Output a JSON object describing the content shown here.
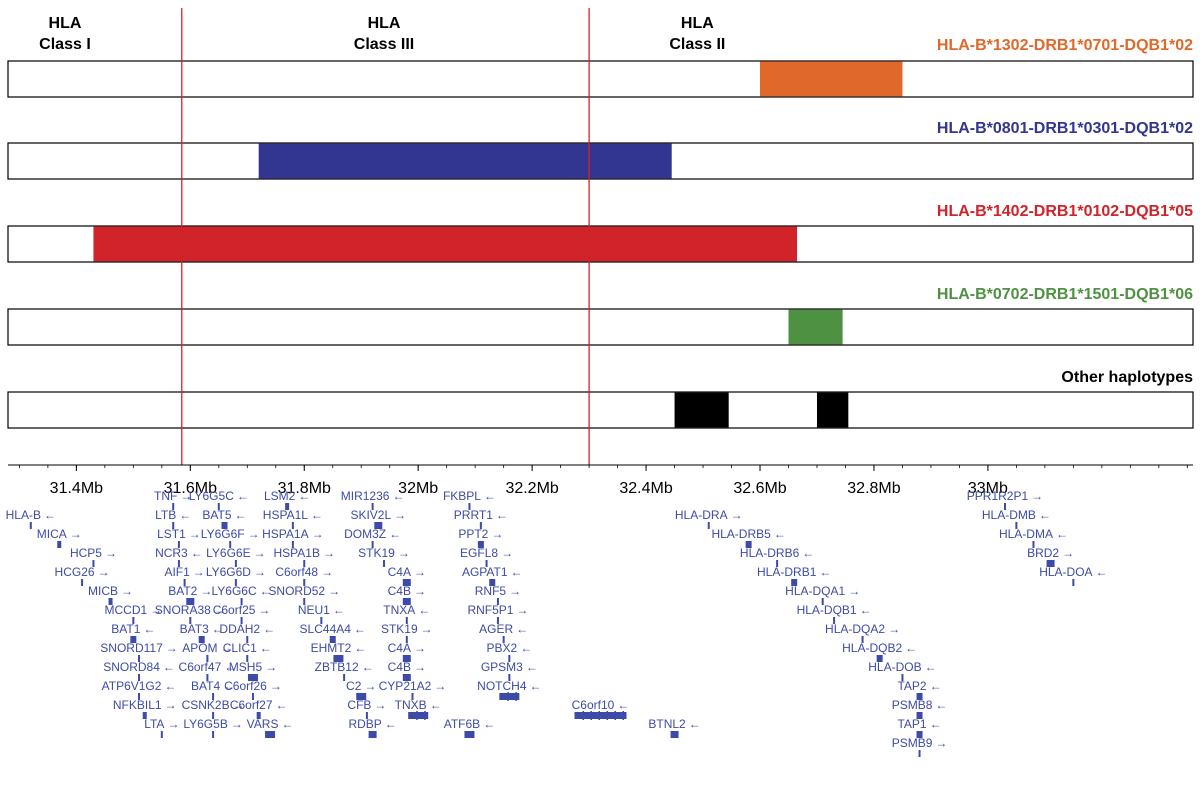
{
  "regions": [
    {
      "name": "HLA",
      "sub": "Class I",
      "center_mb": 31.38
    },
    {
      "name": "HLA",
      "sub": "Class III",
      "center_mb": 31.94
    },
    {
      "name": "HLA",
      "sub": "Class II",
      "center_mb": 32.49
    }
  ],
  "boundaries_mb": [
    31.585,
    32.3
  ],
  "axis": {
    "range_mb": [
      31.28,
      33.36
    ],
    "ticks": [
      {
        "value": 31.4,
        "label": "31.4Mb"
      },
      {
        "value": 31.6,
        "label": "31.6Mb"
      },
      {
        "value": 31.8,
        "label": "31.8Mb"
      },
      {
        "value": 32.0,
        "label": "32Mb"
      },
      {
        "value": 32.2,
        "label": "32.2Mb"
      },
      {
        "value": 32.4,
        "label": "32.4Mb"
      },
      {
        "value": 32.6,
        "label": "32.6Mb"
      },
      {
        "value": 32.8,
        "label": "32.8Mb"
      },
      {
        "value": 33.0,
        "label": "33Mb"
      }
    ]
  },
  "haplotypes": [
    {
      "label": "HLA-B*1302-DRB1*0701-DQB1*02",
      "color": "#e0682a",
      "segments": [
        [
          32.6,
          32.85
        ]
      ]
    },
    {
      "label": "HLA-B*0801-DRB1*0301-DQB1*02",
      "color": "#323690",
      "segments": [
        [
          31.72,
          32.445
        ]
      ]
    },
    {
      "label": "HLA-B*1402-DRB1*0102-DQB1*05",
      "color": "#d0232a",
      "segments": [
        [
          31.43,
          32.665
        ]
      ]
    },
    {
      "label": "HLA-B*0702-DRB1*1501-DQB1*06",
      "color": "#4f9142",
      "segments": [
        [
          32.65,
          32.745
        ]
      ]
    },
    {
      "label": "Other haplotypes",
      "color": "#000000",
      "segments": [
        [
          32.45,
          32.545
        ],
        [
          32.7,
          32.755
        ]
      ]
    }
  ],
  "genes": [
    {
      "name": "HLA-B",
      "dir": "←",
      "pos": 31.32,
      "row": 1,
      "w": 2
    },
    {
      "name": "MICA",
      "dir": "→",
      "pos": 31.37,
      "row": 2,
      "w": 4
    },
    {
      "name": "HCP5",
      "dir": "→",
      "pos": 31.43,
      "row": 3,
      "w": 2
    },
    {
      "name": "HCG26",
      "dir": "→",
      "pos": 31.41,
      "row": 4,
      "w": 2
    },
    {
      "name": "MICB",
      "dir": "→",
      "pos": 31.46,
      "row": 5,
      "w": 4
    },
    {
      "name": "MCCD1",
      "dir": "→",
      "pos": 31.5,
      "row": 6,
      "w": 2
    },
    {
      "name": "BAT1",
      "dir": "←",
      "pos": 31.5,
      "row": 7,
      "w": 6
    },
    {
      "name": "SNORD117",
      "dir": "→",
      "pos": 31.51,
      "row": 8,
      "w": 2
    },
    {
      "name": "SNORD84",
      "dir": "←",
      "pos": 31.51,
      "row": 9,
      "w": 2
    },
    {
      "name": "ATP6V1G2",
      "dir": "←",
      "pos": 31.51,
      "row": 10,
      "w": 2
    },
    {
      "name": "NFKBIL1",
      "dir": "→",
      "pos": 31.52,
      "row": 11,
      "w": 4
    },
    {
      "name": "TNF",
      "dir": "→",
      "pos": 31.57,
      "row": 0,
      "w": 2
    },
    {
      "name": "LTB",
      "dir": "←",
      "pos": 31.57,
      "row": 1,
      "w": 2
    },
    {
      "name": "LST1",
      "dir": "→",
      "pos": 31.58,
      "row": 2,
      "w": 2
    },
    {
      "name": "NCR3",
      "dir": "←",
      "pos": 31.58,
      "row": 3,
      "w": 2
    },
    {
      "name": "AIF1",
      "dir": "→",
      "pos": 31.59,
      "row": 4,
      "w": 2
    },
    {
      "name": "BAT2",
      "dir": "→",
      "pos": 31.6,
      "row": 5,
      "w": 8
    },
    {
      "name": "SNORA38",
      "dir": "→",
      "pos": 31.6,
      "row": 6,
      "w": 2
    },
    {
      "name": "BAT3",
      "dir": "←",
      "pos": 31.62,
      "row": 7,
      "w": 6
    },
    {
      "name": "APOM",
      "dir": "→",
      "pos": 31.63,
      "row": 8,
      "w": 2
    },
    {
      "name": "C6orf47",
      "dir": "←",
      "pos": 31.63,
      "row": 9,
      "w": 2
    },
    {
      "name": "BAT4",
      "dir": "←",
      "pos": 31.64,
      "row": 10,
      "w": 2
    },
    {
      "name": "CSNK2B",
      "dir": "→",
      "pos": 31.64,
      "row": 11,
      "w": 2
    },
    {
      "name": "LTA",
      "dir": "→",
      "pos": 31.55,
      "row": 12,
      "w": 2
    },
    {
      "name": "LY6G5B",
      "dir": "→",
      "pos": 31.64,
      "row": 12,
      "w": 2
    },
    {
      "name": "LY6G5C",
      "dir": "←",
      "pos": 31.65,
      "row": 0,
      "w": 2
    },
    {
      "name": "BAT5",
      "dir": "←",
      "pos": 31.66,
      "row": 1,
      "w": 6
    },
    {
      "name": "LY6G6F",
      "dir": "→",
      "pos": 31.67,
      "row": 2,
      "w": 2
    },
    {
      "name": "LY6G6E",
      "dir": "→",
      "pos": 31.68,
      "row": 3,
      "w": 2
    },
    {
      "name": "LY6G6D",
      "dir": "→",
      "pos": 31.68,
      "row": 4,
      "w": 2
    },
    {
      "name": "LY6G6C",
      "dir": "←",
      "pos": 31.69,
      "row": 5,
      "w": 2
    },
    {
      "name": "C6orf25",
      "dir": "→",
      "pos": 31.69,
      "row": 6,
      "w": 2
    },
    {
      "name": "DDAH2",
      "dir": "←",
      "pos": 31.7,
      "row": 7,
      "w": 2
    },
    {
      "name": "CLIC1",
      "dir": "←",
      "pos": 31.7,
      "row": 8,
      "w": 2
    },
    {
      "name": "MSH5",
      "dir": "→",
      "pos": 31.71,
      "row": 9,
      "w": 10
    },
    {
      "name": "C6orf26",
      "dir": "→",
      "pos": 31.71,
      "row": 10,
      "w": 2
    },
    {
      "name": "C6orf27",
      "dir": "←",
      "pos": 31.72,
      "row": 11,
      "w": 4
    },
    {
      "name": "VARS",
      "dir": "←",
      "pos": 31.74,
      "row": 12,
      "w": 10
    },
    {
      "name": "LSM2",
      "dir": "←",
      "pos": 31.77,
      "row": 0,
      "w": 4
    },
    {
      "name": "HSPA1L",
      "dir": "←",
      "pos": 31.78,
      "row": 1,
      "w": 2
    },
    {
      "name": "HSPA1A",
      "dir": "→",
      "pos": 31.78,
      "row": 2,
      "w": 2
    },
    {
      "name": "HSPA1B",
      "dir": "→",
      "pos": 31.8,
      "row": 3,
      "w": 2
    },
    {
      "name": "C6orf48",
      "dir": "→",
      "pos": 31.8,
      "row": 4,
      "w": 2
    },
    {
      "name": "SNORD52",
      "dir": "→",
      "pos": 31.8,
      "row": 5,
      "w": 2
    },
    {
      "name": "NEU1",
      "dir": "←",
      "pos": 31.83,
      "row": 6,
      "w": 2
    },
    {
      "name": "SLC44A4",
      "dir": "←",
      "pos": 31.85,
      "row": 7,
      "w": 6
    },
    {
      "name": "EHMT2",
      "dir": "←",
      "pos": 31.86,
      "row": 8,
      "w": 10
    },
    {
      "name": "ZBTB12",
      "dir": "←",
      "pos": 31.87,
      "row": 9,
      "w": 2
    },
    {
      "name": "C2",
      "dir": "→",
      "pos": 31.9,
      "row": 10,
      "w": 10
    },
    {
      "name": "CFB",
      "dir": "→",
      "pos": 31.91,
      "row": 11,
      "w": 2
    },
    {
      "name": "RDBP",
      "dir": "←",
      "pos": 31.92,
      "row": 12,
      "w": 8
    },
    {
      "name": "MIR1236",
      "dir": "←",
      "pos": 31.92,
      "row": 0,
      "w": 2
    },
    {
      "name": "SKIV2L",
      "dir": "→",
      "pos": 31.93,
      "row": 1,
      "w": 8
    },
    {
      "name": "DOM3Z",
      "dir": "←",
      "pos": 31.92,
      "row": 2,
      "w": 2
    },
    {
      "name": "STK19",
      "dir": "→",
      "pos": 31.94,
      "row": 3,
      "w": 2
    },
    {
      "name": "C4A",
      "dir": "→",
      "pos": 31.98,
      "row": 4,
      "w": 8
    },
    {
      "name": "C4B",
      "dir": "→",
      "pos": 31.98,
      "row": 5,
      "w": 8
    },
    {
      "name": "TNXA",
      "dir": "←",
      "pos": 31.98,
      "row": 6,
      "w": 2
    },
    {
      "name": "STK19",
      "dir": "→",
      "pos": 31.98,
      "row": 7,
      "w": 2
    },
    {
      "name": "C4A",
      "dir": "→",
      "pos": 31.98,
      "row": 8,
      "w": 8
    },
    {
      "name": "C4B",
      "dir": "→",
      "pos": 31.98,
      "row": 9,
      "w": 8
    },
    {
      "name": "CYP21A2",
      "dir": "→",
      "pos": 31.99,
      "row": 10,
      "w": 2
    },
    {
      "name": "TNXB",
      "dir": "←",
      "pos": 32.0,
      "row": 11,
      "w": 20
    },
    {
      "name": "FKBPL",
      "dir": "←",
      "pos": 32.09,
      "row": 0,
      "w": 2
    },
    {
      "name": "PRRT1",
      "dir": "←",
      "pos": 32.11,
      "row": 1,
      "w": 2
    },
    {
      "name": "PPT2",
      "dir": "→",
      "pos": 32.11,
      "row": 2,
      "w": 6
    },
    {
      "name": "EGFL8",
      "dir": "→",
      "pos": 32.12,
      "row": 3,
      "w": 2
    },
    {
      "name": "AGPAT1",
      "dir": "←",
      "pos": 32.13,
      "row": 4,
      "w": 6
    },
    {
      "name": "RNF5",
      "dir": "→",
      "pos": 32.14,
      "row": 5,
      "w": 2
    },
    {
      "name": "RNF5P1",
      "dir": "→",
      "pos": 32.14,
      "row": 6,
      "w": 2
    },
    {
      "name": "AGER",
      "dir": "←",
      "pos": 32.15,
      "row": 7,
      "w": 2
    },
    {
      "name": "PBX2",
      "dir": "←",
      "pos": 32.16,
      "row": 8,
      "w": 2
    },
    {
      "name": "GPSM3",
      "dir": "←",
      "pos": 32.16,
      "row": 9,
      "w": 2
    },
    {
      "name": "NOTCH4",
      "dir": "←",
      "pos": 32.16,
      "row": 10,
      "w": 20
    },
    {
      "name": "ATF6B",
      "dir": "←",
      "pos": 32.09,
      "row": 12,
      "w": 10
    },
    {
      "name": "C6orf10",
      "dir": "←",
      "pos": 32.32,
      "row": 11,
      "w": 52
    },
    {
      "name": "BTNL2",
      "dir": "←",
      "pos": 32.45,
      "row": 12,
      "w": 8
    },
    {
      "name": "HLA-DRA",
      "dir": "→",
      "pos": 32.51,
      "row": 1,
      "w": 2
    },
    {
      "name": "HLA-DRB5",
      "dir": "←",
      "pos": 32.58,
      "row": 2,
      "w": 6
    },
    {
      "name": "HLA-DRB6",
      "dir": "←",
      "pos": 32.63,
      "row": 3,
      "w": 2
    },
    {
      "name": "HLA-DRB1",
      "dir": "←",
      "pos": 32.66,
      "row": 4,
      "w": 6
    },
    {
      "name": "HLA-DQA1",
      "dir": "→",
      "pos": 32.71,
      "row": 5,
      "w": 2
    },
    {
      "name": "HLA-DQB1",
      "dir": "←",
      "pos": 32.73,
      "row": 6,
      "w": 2
    },
    {
      "name": "HLA-DQA2",
      "dir": "→",
      "pos": 32.78,
      "row": 7,
      "w": 2
    },
    {
      "name": "HLA-DQB2",
      "dir": "←",
      "pos": 32.81,
      "row": 8,
      "w": 6
    },
    {
      "name": "HLA-DOB",
      "dir": "←",
      "pos": 32.85,
      "row": 9,
      "w": 2
    },
    {
      "name": "TAP2",
      "dir": "←",
      "pos": 32.88,
      "row": 10,
      "w": 6
    },
    {
      "name": "PSMB8",
      "dir": "←",
      "pos": 32.88,
      "row": 11,
      "w": 6
    },
    {
      "name": "TAP1",
      "dir": "←",
      "pos": 32.88,
      "row": 12,
      "w": 6
    },
    {
      "name": "PSMB9",
      "dir": "→",
      "pos": 32.88,
      "row": 13,
      "w": 2
    },
    {
      "name": "PPR1R2P1",
      "dir": "→",
      "pos": 33.03,
      "row": 0,
      "w": 2
    },
    {
      "name": "HLA-DMB",
      "dir": "←",
      "pos": 33.05,
      "row": 1,
      "w": 2
    },
    {
      "name": "HLA-DMA",
      "dir": "←",
      "pos": 33.08,
      "row": 2,
      "w": 2
    },
    {
      "name": "BRD2",
      "dir": "→",
      "pos": 33.11,
      "row": 3,
      "w": 8
    },
    {
      "name": "HLA-DOA",
      "dir": "←",
      "pos": 33.15,
      "row": 4,
      "w": 2
    }
  ]
}
